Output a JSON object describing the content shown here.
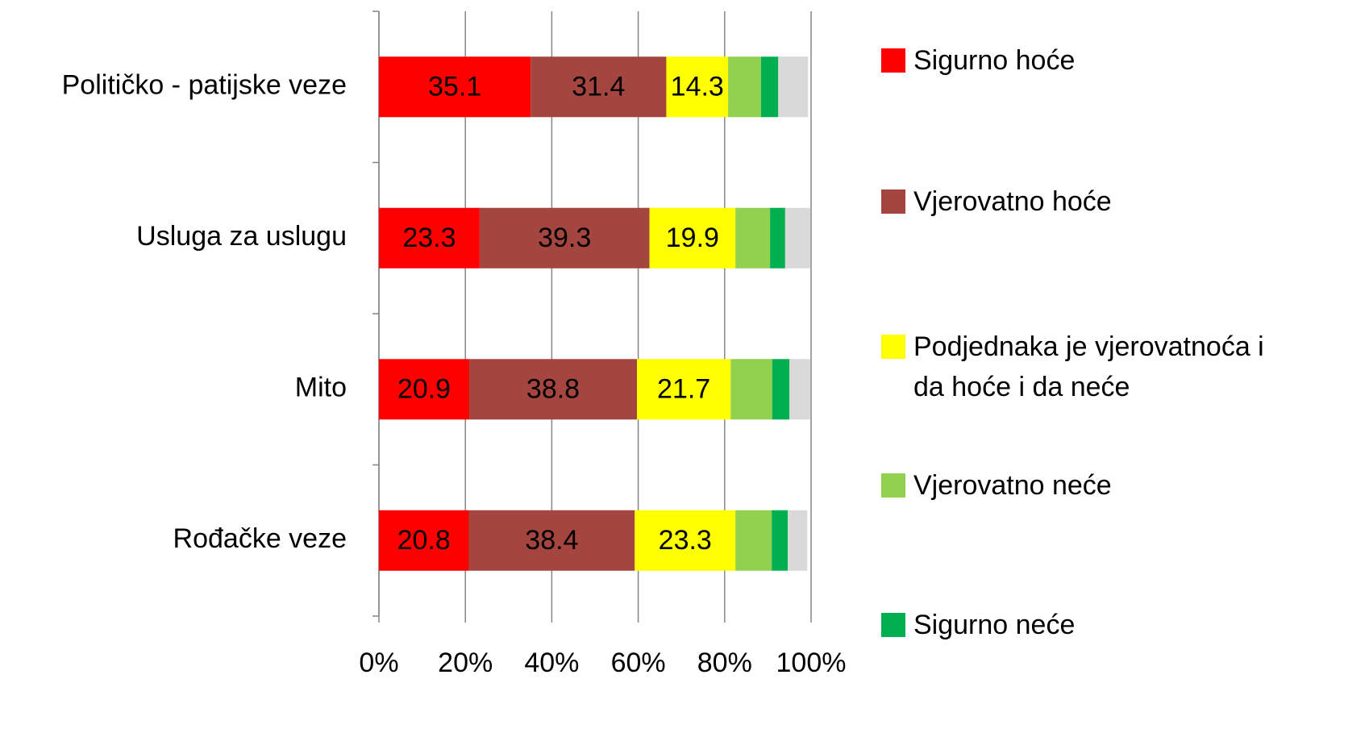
{
  "chart_data": {
    "type": "stacked_barh",
    "categories": [
      "Političko - patijske veze",
      "Usluga za uslugu",
      "Mito",
      "Rođačke veze"
    ],
    "series": [
      {
        "name": "Sigurno hoće",
        "color": "#ff0000",
        "labels": true,
        "values": [
          35.1,
          23.3,
          20.9,
          20.8
        ]
      },
      {
        "name": "Vjerovatno hoće",
        "color": "#a5453f",
        "labels": true,
        "values": [
          31.4,
          39.3,
          38.8,
          38.4
        ]
      },
      {
        "name": "Podjednaka je vjerovatnoća i da hoće i da neće",
        "color": "#ffff00",
        "labels": true,
        "values": [
          14.3,
          19.9,
          21.7,
          23.3
        ]
      },
      {
        "name": "Vjerovatno neće",
        "color": "#92d050",
        "labels": false,
        "values": [
          7.6,
          8.0,
          9.6,
          8.4
        ]
      },
      {
        "name": "Sigurno neće",
        "color": "#00b050",
        "labels": false,
        "values": [
          4.0,
          3.5,
          4.0,
          3.7
        ]
      },
      {
        "color": "#d9d9d9",
        "labels": false,
        "values": [
          6.9,
          5.8,
          4.8,
          4.5
        ]
      }
    ],
    "xlim": [
      0,
      100
    ],
    "xticks": [
      {
        "value": 0,
        "label": "0%"
      },
      {
        "value": 20,
        "label": "20%"
      },
      {
        "value": 40,
        "label": "40%"
      },
      {
        "value": 60,
        "label": "60%"
      },
      {
        "value": 80,
        "label": "80%"
      },
      {
        "value": 100,
        "label": "100%"
      }
    ],
    "grid": true,
    "legend": "right"
  }
}
